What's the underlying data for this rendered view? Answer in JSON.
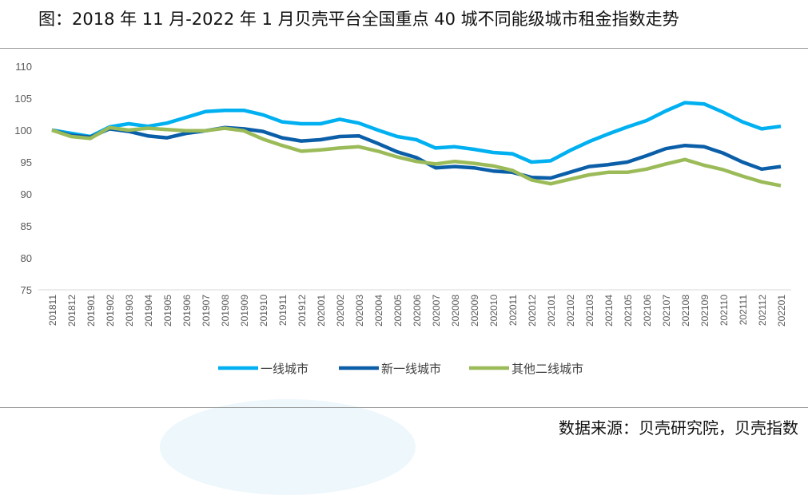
{
  "title": "图：2018 年 11 月-2022 年 1 月贝壳平台全国重点 40 城不同能级城市租金指数走势",
  "source": "数据来源：贝壳研究院，贝壳指数",
  "chart_data": {
    "type": "line",
    "title": "",
    "xlabel": "",
    "ylabel": "",
    "ylim": [
      75,
      110
    ],
    "yticks": [
      75,
      80,
      85,
      90,
      95,
      100,
      105,
      110
    ],
    "grid": false,
    "legend": "bottom",
    "x": [
      "201811",
      "201812",
      "201901",
      "201902",
      "201903",
      "201904",
      "201905",
      "201906",
      "201907",
      "201908",
      "201909",
      "201910",
      "201911",
      "201912",
      "202001",
      "202002",
      "202003",
      "202004",
      "202005",
      "202006",
      "202007",
      "202008",
      "202009",
      "202010",
      "202011",
      "202012",
      "202101",
      "202102",
      "202103",
      "202104",
      "202105",
      "202106",
      "202107",
      "202108",
      "202109",
      "202110",
      "202111",
      "202112",
      "202201"
    ],
    "series": [
      {
        "name": "一线城市",
        "color": "#00b0f0",
        "values": [
          100,
          99.5,
          99,
          100.5,
          101,
          100.6,
          101.1,
          102,
          102.9,
          103.1,
          103.1,
          102.4,
          101.3,
          101,
          101,
          101.7,
          101.1,
          100,
          99,
          98.5,
          97.2,
          97.4,
          97,
          96.5,
          96.3,
          95,
          95.2,
          96.8,
          98.2,
          99.4,
          100.5,
          101.5,
          103,
          104.3,
          104.1,
          102.8,
          101.3,
          100.2,
          100.6
        ]
      },
      {
        "name": "新一线城市",
        "color": "#0b5ea8",
        "values": [
          100,
          99.2,
          98.9,
          100.2,
          99.8,
          99.1,
          98.8,
          99.5,
          99.9,
          100.4,
          100.2,
          99.8,
          98.8,
          98.3,
          98.5,
          99,
          99.1,
          97.9,
          96.6,
          95.7,
          94.1,
          94.3,
          94.1,
          93.6,
          93.4,
          92.6,
          92.5,
          93.4,
          94.3,
          94.6,
          95,
          96,
          97.1,
          97.6,
          97.4,
          96.4,
          95,
          93.9,
          94.3
        ]
      },
      {
        "name": "其他二线城市",
        "color": "#9bbb59",
        "values": [
          100,
          99,
          98.7,
          100.4,
          100,
          100.3,
          100.1,
          99.9,
          99.9,
          100.3,
          99.9,
          98.6,
          97.6,
          96.7,
          96.9,
          97.2,
          97.4,
          96.7,
          95.8,
          95.1,
          94.7,
          95.1,
          94.8,
          94.4,
          93.7,
          92.2,
          91.6,
          92.3,
          93,
          93.4,
          93.4,
          93.9,
          94.7,
          95.4,
          94.5,
          93.8,
          92.8,
          91.9,
          91.3
        ]
      }
    ]
  }
}
